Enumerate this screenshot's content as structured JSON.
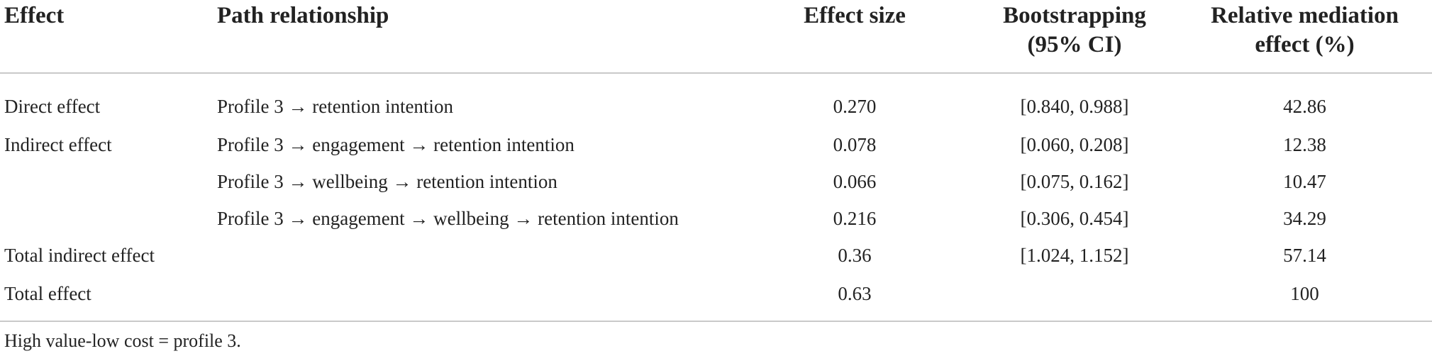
{
  "table": {
    "headers": {
      "effect": "Effect",
      "path": "Path relationship",
      "size": "Effect size",
      "boot_line1": "Bootstrapping",
      "boot_line2": "(95% CI)",
      "rel_line1": "Relative mediation",
      "rel_line2": "effect (%)"
    },
    "rows": [
      {
        "effect": "Direct effect",
        "path": "Profile 3 → retention intention",
        "size": "0.270",
        "ci": "[0.840, 0.988]",
        "rel": "42.86"
      },
      {
        "effect": "Indirect effect",
        "path": "Profile 3 → engagement → retention intention",
        "size": "0.078",
        "ci": "[0.060, 0.208]",
        "rel": "12.38"
      },
      {
        "effect": "",
        "path": "Profile 3 → wellbeing → retention intention",
        "size": "0.066",
        "ci": "[0.075, 0.162]",
        "rel": "10.47"
      },
      {
        "effect": "",
        "path": "Profile 3 → engagement → wellbeing → retention intention",
        "size": "0.216",
        "ci": "[0.306, 0.454]",
        "rel": "34.29"
      },
      {
        "effect": "Total indirect effect",
        "path": "",
        "size": "0.36",
        "ci": "[1.024, 1.152]",
        "rel": "57.14"
      },
      {
        "effect": "Total effect",
        "path": "",
        "size": "0.63",
        "ci": "",
        "rel": "100"
      }
    ]
  },
  "note": "High value-low cost = profile 3."
}
